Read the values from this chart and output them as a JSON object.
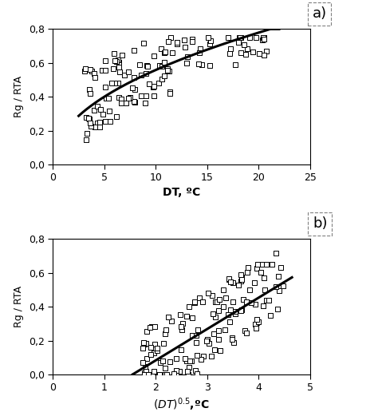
{
  "panel_a_label": "a)",
  "panel_b_label": "b)",
  "ylabel": "Rg / RTA",
  "xlabel_a": "DT, ºC",
  "background_color": "#ffffff",
  "scatter_facecolor": "white",
  "scatter_edgecolor": "black",
  "scatter_size": 22,
  "scatter_linewidth": 0.7,
  "line_color": "black",
  "line_width": 2.2,
  "panel_a": {
    "xlim": [
      0,
      25
    ],
    "ylim": [
      0.0,
      0.8
    ],
    "xticks": [
      0,
      5,
      10,
      15,
      20,
      25
    ],
    "yticks": [
      0.0,
      0.2,
      0.4,
      0.6,
      0.8
    ],
    "yticklabels": [
      "0,0",
      "0,2",
      "0,4",
      "0,6",
      "0,8"
    ],
    "curve_a": 0.185,
    "curve_b": 0.48,
    "curve_xstart": 2.5,
    "curve_xend": 22.0
  },
  "panel_b": {
    "xlim": [
      0,
      5
    ],
    "ylim": [
      0.0,
      0.8
    ],
    "xticks": [
      0,
      1,
      2,
      3,
      4,
      5
    ],
    "yticks": [
      0.0,
      0.2,
      0.4,
      0.6,
      0.8
    ],
    "yticklabels": [
      "0,0",
      "0,2",
      "0,4",
      "0,6",
      "0,8"
    ],
    "line_x0": 1.55,
    "line_xend": 4.65,
    "line_slope": 0.185,
    "line_intercept": -0.287
  }
}
